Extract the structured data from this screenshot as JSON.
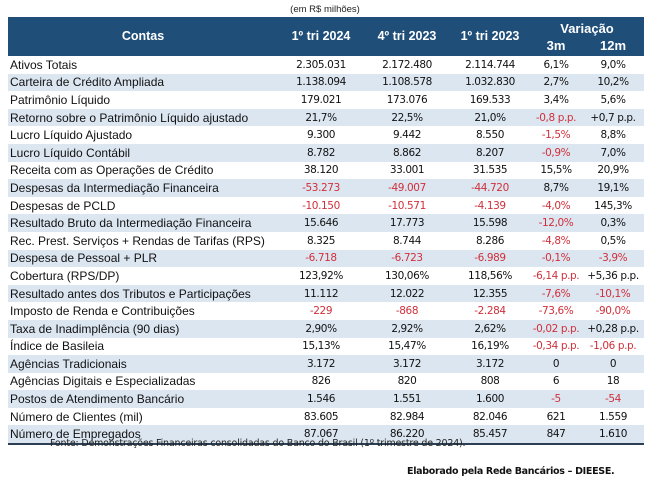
{
  "unit_note": "(em R$ milhões)",
  "header": {
    "contas": "Contas",
    "col1": "1º tri 2024",
    "col2": "4º tri 2023",
    "col3": "1º tri 2023",
    "variacao": "Variação",
    "var3m": "3m",
    "var12m": "12m"
  },
  "colors": {
    "header_bg": "#1f4e79",
    "stripe_bg": "#dce6f1",
    "negative_text": "#d0303a"
  },
  "rows": [
    {
      "label": "Ativos Totais",
      "c1": "2.305.031",
      "c2": "2.172.480",
      "c3": "2.114.744",
      "v3m": "6,1%",
      "v12m": "9,0%",
      "neg": []
    },
    {
      "label": "Carteira de Crédito Ampliada",
      "c1": "1.138.094",
      "c2": "1.108.578",
      "c3": "1.032.830",
      "v3m": "2,7%",
      "v12m": "10,2%",
      "neg": []
    },
    {
      "label": "Patrimônio Líquido",
      "c1": "179.021",
      "c2": "173.076",
      "c3": "169.533",
      "v3m": "3,4%",
      "v12m": "5,6%",
      "neg": []
    },
    {
      "label": "Retorno sobre o Patrimônio Líquido ajustado",
      "c1": "21,7%",
      "c2": "22,5%",
      "c3": "21,0%",
      "v3m": "-0,8 p.p.",
      "v12m": "+0,7 p.p.",
      "neg": [
        "v3m"
      ]
    },
    {
      "label": "Lucro Líquido Ajustado",
      "c1": "9.300",
      "c2": "9.442",
      "c3": "8.550",
      "v3m": "-1,5%",
      "v12m": "8,8%",
      "neg": [
        "v3m"
      ]
    },
    {
      "label": "Lucro Líquido Contábil",
      "c1": "8.782",
      "c2": "8.862",
      "c3": "8.207",
      "v3m": "-0,9%",
      "v12m": "7,0%",
      "neg": [
        "v3m"
      ]
    },
    {
      "label": "Receita com as Operações de Crédito",
      "c1": "38.120",
      "c2": "33.001",
      "c3": "31.535",
      "v3m": "15,5%",
      "v12m": "20,9%",
      "neg": []
    },
    {
      "label": "Despesas da Intermediação Financeira",
      "c1": "-53.273",
      "c2": "-49.007",
      "c3": "-44.720",
      "v3m": "8,7%",
      "v12m": "19,1%",
      "neg": [
        "c1",
        "c2",
        "c3"
      ]
    },
    {
      "label": "Despesas de PCLD",
      "c1": "-10.150",
      "c2": "-10.571",
      "c3": "-4.139",
      "v3m": "-4,0%",
      "v12m": "145,3%",
      "neg": [
        "c1",
        "c2",
        "c3",
        "v3m"
      ]
    },
    {
      "label": "Resultado Bruto da Intermediação Financeira",
      "c1": "15.646",
      "c2": "17.773",
      "c3": "15.598",
      "v3m": "-12,0%",
      "v12m": "0,3%",
      "neg": [
        "v3m"
      ]
    },
    {
      "label": "Rec. Prest. Serviços + Rendas de Tarifas (RPS)",
      "c1": "8.325",
      "c2": "8.744",
      "c3": "8.286",
      "v3m": "-4,8%",
      "v12m": "0,5%",
      "neg": [
        "v3m"
      ]
    },
    {
      "label": "Despesa de Pessoal + PLR",
      "c1": "-6.718",
      "c2": "-6.723",
      "c3": "-6.989",
      "v3m": "-0,1%",
      "v12m": "-3,9%",
      "neg": [
        "c1",
        "c2",
        "c3",
        "v3m",
        "v12m"
      ]
    },
    {
      "label": "Cobertura (RPS/DP)",
      "c1": "123,92%",
      "c2": "130,06%",
      "c3": "118,56%",
      "v3m": "-6,14 p.p.",
      "v12m": "+5,36 p.p.",
      "neg": [
        "v3m"
      ]
    },
    {
      "label": "Resultado antes dos Tributos e Participações",
      "c1": "11.112",
      "c2": "12.022",
      "c3": "12.355",
      "v3m": "-7,6%",
      "v12m": "-10,1%",
      "neg": [
        "v3m",
        "v12m"
      ]
    },
    {
      "label": "Imposto de Renda e Contribuições",
      "c1": "-229",
      "c2": "-868",
      "c3": "-2.284",
      "v3m": "-73,6%",
      "v12m": "-90,0%",
      "neg": [
        "c1",
        "c2",
        "c3",
        "v3m",
        "v12m"
      ]
    },
    {
      "label": "Taxa de Inadimplência (90 dias)",
      "c1": "2,90%",
      "c2": "2,92%",
      "c3": "2,62%",
      "v3m": "-0,02 p.p.",
      "v12m": "+0,28 p.p.",
      "neg": [
        "v3m"
      ]
    },
    {
      "label": "Índice de Basileia",
      "c1": "15,13%",
      "c2": "15,47%",
      "c3": "16,19%",
      "v3m": "-0,34 p.p.",
      "v12m": "-1,06 p.p.",
      "neg": [
        "v3m",
        "v12m"
      ]
    },
    {
      "label": "Agências Tradicionais",
      "c1": "3.172",
      "c2": "3.172",
      "c3": "3.172",
      "v3m": "0",
      "v12m": "0",
      "neg": []
    },
    {
      "label": "Agências Digitais e Especializadas",
      "c1": "826",
      "c2": "820",
      "c3": "808",
      "v3m": "6",
      "v12m": "18",
      "neg": []
    },
    {
      "label": "Postos de Atendimento Bancário",
      "c1": "1.546",
      "c2": "1.551",
      "c3": "1.600",
      "v3m": "-5",
      "v12m": "-54",
      "neg": [
        "v3m",
        "v12m"
      ]
    },
    {
      "label": "Número de Clientes (mil)",
      "c1": "83.605",
      "c2": "82.984",
      "c3": "82.046",
      "v3m": "621",
      "v12m": "1.559",
      "neg": []
    },
    {
      "label": "Número de Empregados",
      "c1": "87.067",
      "c2": "86.220",
      "c3": "85.457",
      "v3m": "847",
      "v12m": "1.610",
      "neg": []
    }
  ],
  "footer": {
    "source": "Fonte: Demonstrações Financeiras consolidadas do Banco do Brasil (1º trimestre de 2024).",
    "credit": "Elaborado pela Rede Bancários – DIEESE."
  }
}
